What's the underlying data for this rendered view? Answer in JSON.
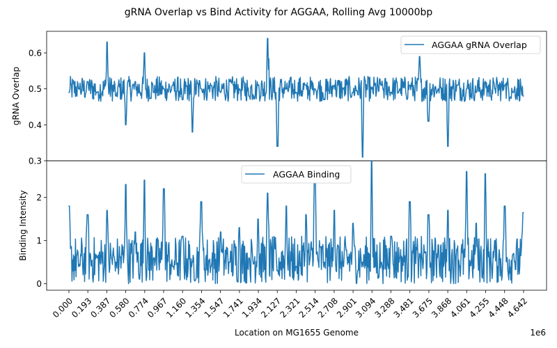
{
  "chart_data": {
    "title": "gRNA Overlap vs Bind Activity for AGGAA, Rolling Avg 10000bp",
    "type": "line",
    "shared_x": {
      "label": "Location on MG1655 Genome",
      "offset_text": "1e6",
      "range": [
        0,
        4642000
      ],
      "tick_values": [
        0.0,
        0.193,
        0.387,
        0.58,
        0.774,
        0.967,
        1.16,
        1.354,
        1.547,
        1.741,
        1.934,
        2.127,
        2.321,
        2.514,
        2.708,
        2.901,
        3.094,
        3.288,
        3.481,
        3.675,
        3.868,
        4.061,
        4.255,
        4.448,
        4.642
      ],
      "tick_labels": [
        "0.000",
        "0.193",
        "0.387",
        "0.580",
        "0.774",
        "0.967",
        "1.160",
        "1.354",
        "1.547",
        "1.741",
        "1.934",
        "2.127",
        "2.321",
        "2.514",
        "2.708",
        "2.901",
        "3.094",
        "3.288",
        "3.481",
        "3.675",
        "3.868",
        "4.061",
        "4.255",
        "4.448",
        "4.642"
      ]
    },
    "panels": [
      {
        "ylabel": "gRNA Overlap",
        "ylim": [
          0.3,
          0.66
        ],
        "yticks": [
          0.3,
          0.4,
          0.5,
          0.6
        ],
        "ytick_labels": [
          "0.3",
          "0.4",
          "0.5",
          "0.6"
        ],
        "legend_position": "top-right",
        "series": [
          {
            "name": "AGGAA gRNA Overlap",
            "color": "#1f77b4",
            "x": [
              0.0,
              0.1,
              0.19,
              0.29,
              0.39,
              0.48,
              0.58,
              0.68,
              0.77,
              0.87,
              0.97,
              1.06,
              1.16,
              1.26,
              1.35,
              1.45,
              1.55,
              1.64,
              1.74,
              1.84,
              1.93,
              2.03,
              2.13,
              2.22,
              2.32,
              2.42,
              2.51,
              2.61,
              2.71,
              2.8,
              2.9,
              3.0,
              3.09,
              3.19,
              3.29,
              3.38,
              3.48,
              3.58,
              3.67,
              3.77,
              3.87,
              3.96,
              4.06,
              4.16,
              4.25,
              4.35,
              4.45,
              4.54,
              4.64
            ],
            "y": [
              0.49,
              0.5,
              0.52,
              0.49,
              0.63,
              0.48,
              0.4,
              0.52,
              0.6,
              0.49,
              0.5,
              0.51,
              0.47,
              0.38,
              0.5,
              0.51,
              0.49,
              0.52,
              0.5,
              0.48,
              0.51,
              0.64,
              0.34,
              0.5,
              0.49,
              0.51,
              0.5,
              0.47,
              0.51,
              0.5,
              0.49,
              0.31,
              0.5,
              0.51,
              0.49,
              0.5,
              0.51,
              0.59,
              0.41,
              0.5,
              0.34,
              0.51,
              0.5,
              0.49,
              0.52,
              0.5,
              0.51,
              0.49,
              0.48
            ]
          }
        ]
      },
      {
        "ylabel": "Binding Intensity",
        "ylim": [
          -0.15,
          2.85
        ],
        "yticks": [
          0,
          1,
          2
        ],
        "ytick_labels": [
          "0",
          "1",
          "2"
        ],
        "legend_position": "top-center",
        "series": [
          {
            "name": "AGGAA Binding",
            "color": "#1f77b4",
            "x": [
              0.0,
              0.1,
              0.19,
              0.29,
              0.39,
              0.48,
              0.58,
              0.68,
              0.77,
              0.87,
              0.97,
              1.06,
              1.16,
              1.26,
              1.35,
              1.45,
              1.55,
              1.64,
              1.74,
              1.84,
              1.93,
              2.03,
              2.13,
              2.22,
              2.32,
              2.42,
              2.51,
              2.61,
              2.71,
              2.8,
              2.9,
              3.0,
              3.09,
              3.19,
              3.29,
              3.38,
              3.48,
              3.58,
              3.67,
              3.77,
              3.87,
              3.96,
              4.06,
              4.16,
              4.25,
              4.35,
              4.45,
              4.54,
              4.64
            ],
            "y": [
              1.8,
              0.4,
              1.6,
              0.6,
              1.7,
              0.5,
              2.3,
              1.2,
              2.4,
              0.6,
              2.2,
              0.4,
              1.1,
              0.5,
              1.9,
              0.4,
              1.2,
              0.5,
              1.3,
              0.6,
              1.5,
              2.1,
              0.3,
              1.8,
              0.4,
              1.6,
              2.6,
              0.5,
              1.7,
              0.4,
              1.4,
              0.5,
              2.85,
              0.5,
              1.1,
              0.6,
              1.9,
              0.7,
              1.6,
              0.9,
              1.7,
              0.8,
              2.6,
              1.4,
              2.55,
              1.0,
              1.8,
              0.7,
              1.65
            ]
          }
        ]
      }
    ]
  }
}
